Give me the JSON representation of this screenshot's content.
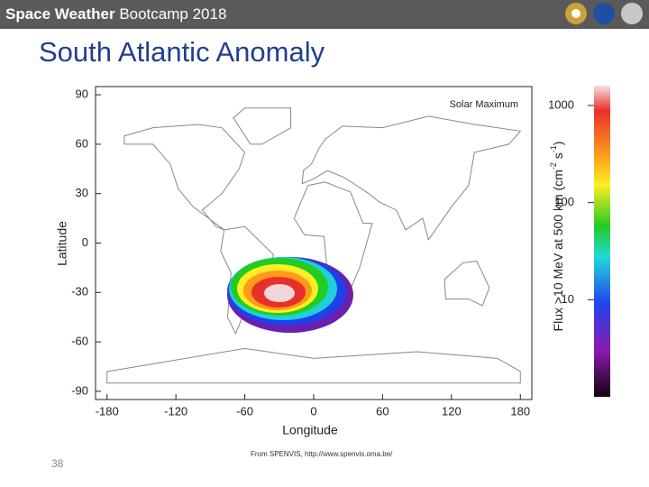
{
  "header": {
    "title_bold": "Space Weather",
    "title_rest": "Bootcamp 2018"
  },
  "slide_title": "South Atlantic Anomaly",
  "chart_data": {
    "type": "map",
    "annotation": "Solar Maximum",
    "xlabel": "Longitude",
    "ylabel": "Latitude",
    "xlim": [
      -190,
      190
    ],
    "xticks": [
      -180,
      -120,
      -60,
      0,
      60,
      120,
      180
    ],
    "ylim": [
      -95,
      95
    ],
    "yticks": [
      90,
      60,
      30,
      0,
      -30,
      -60,
      -90
    ],
    "colorbar": {
      "label_main": "Flux >10 MeV at 500 km (cm",
      "label_exp1": "-2",
      "label_mid": " s",
      "label_exp2": "-1",
      "label_end": ")",
      "scale": "log",
      "lim": [
        1,
        1600
      ],
      "ticks": [
        1000,
        100,
        10
      ]
    }
  },
  "source": "From SPENVIS, http://www.spenvis.oma.be/",
  "page_number": "38"
}
